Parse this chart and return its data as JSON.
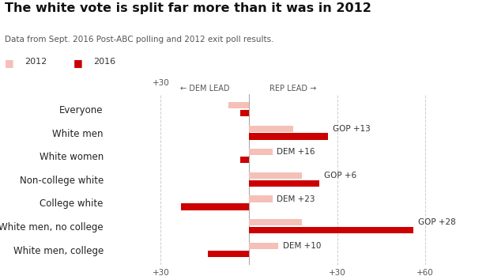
{
  "title": "The white vote is split far more than it was in 2012",
  "subtitle": "Data from Sept. 2016 Post-ABC polling and 2012 exit poll results.",
  "categories": [
    "Everyone",
    "White men",
    "White women",
    "Non-college white",
    "College white",
    "White men, no college",
    "White men, college"
  ],
  "values_2012": [
    -7,
    15,
    8,
    18,
    8,
    18,
    10
  ],
  "values_2016": [
    -3,
    27,
    -3,
    24,
    -23,
    56,
    -14
  ],
  "annot_texts": [
    "",
    "GOP +13",
    "DEM +16",
    "GOP +6",
    "DEM +23",
    "GOP +28",
    "DEM +10"
  ],
  "annot_next_to_2012": [
    false,
    false,
    true,
    false,
    true,
    false,
    true
  ],
  "color_2012": "#f5c0b8",
  "color_2016": "#cc0000",
  "xlim_left": -48,
  "xlim_right": 72,
  "background_color": "#ffffff",
  "bar_height": 0.28,
  "bar_gap": 0.05,
  "fig_width": 6.2,
  "fig_height": 3.49,
  "dpi": 100
}
